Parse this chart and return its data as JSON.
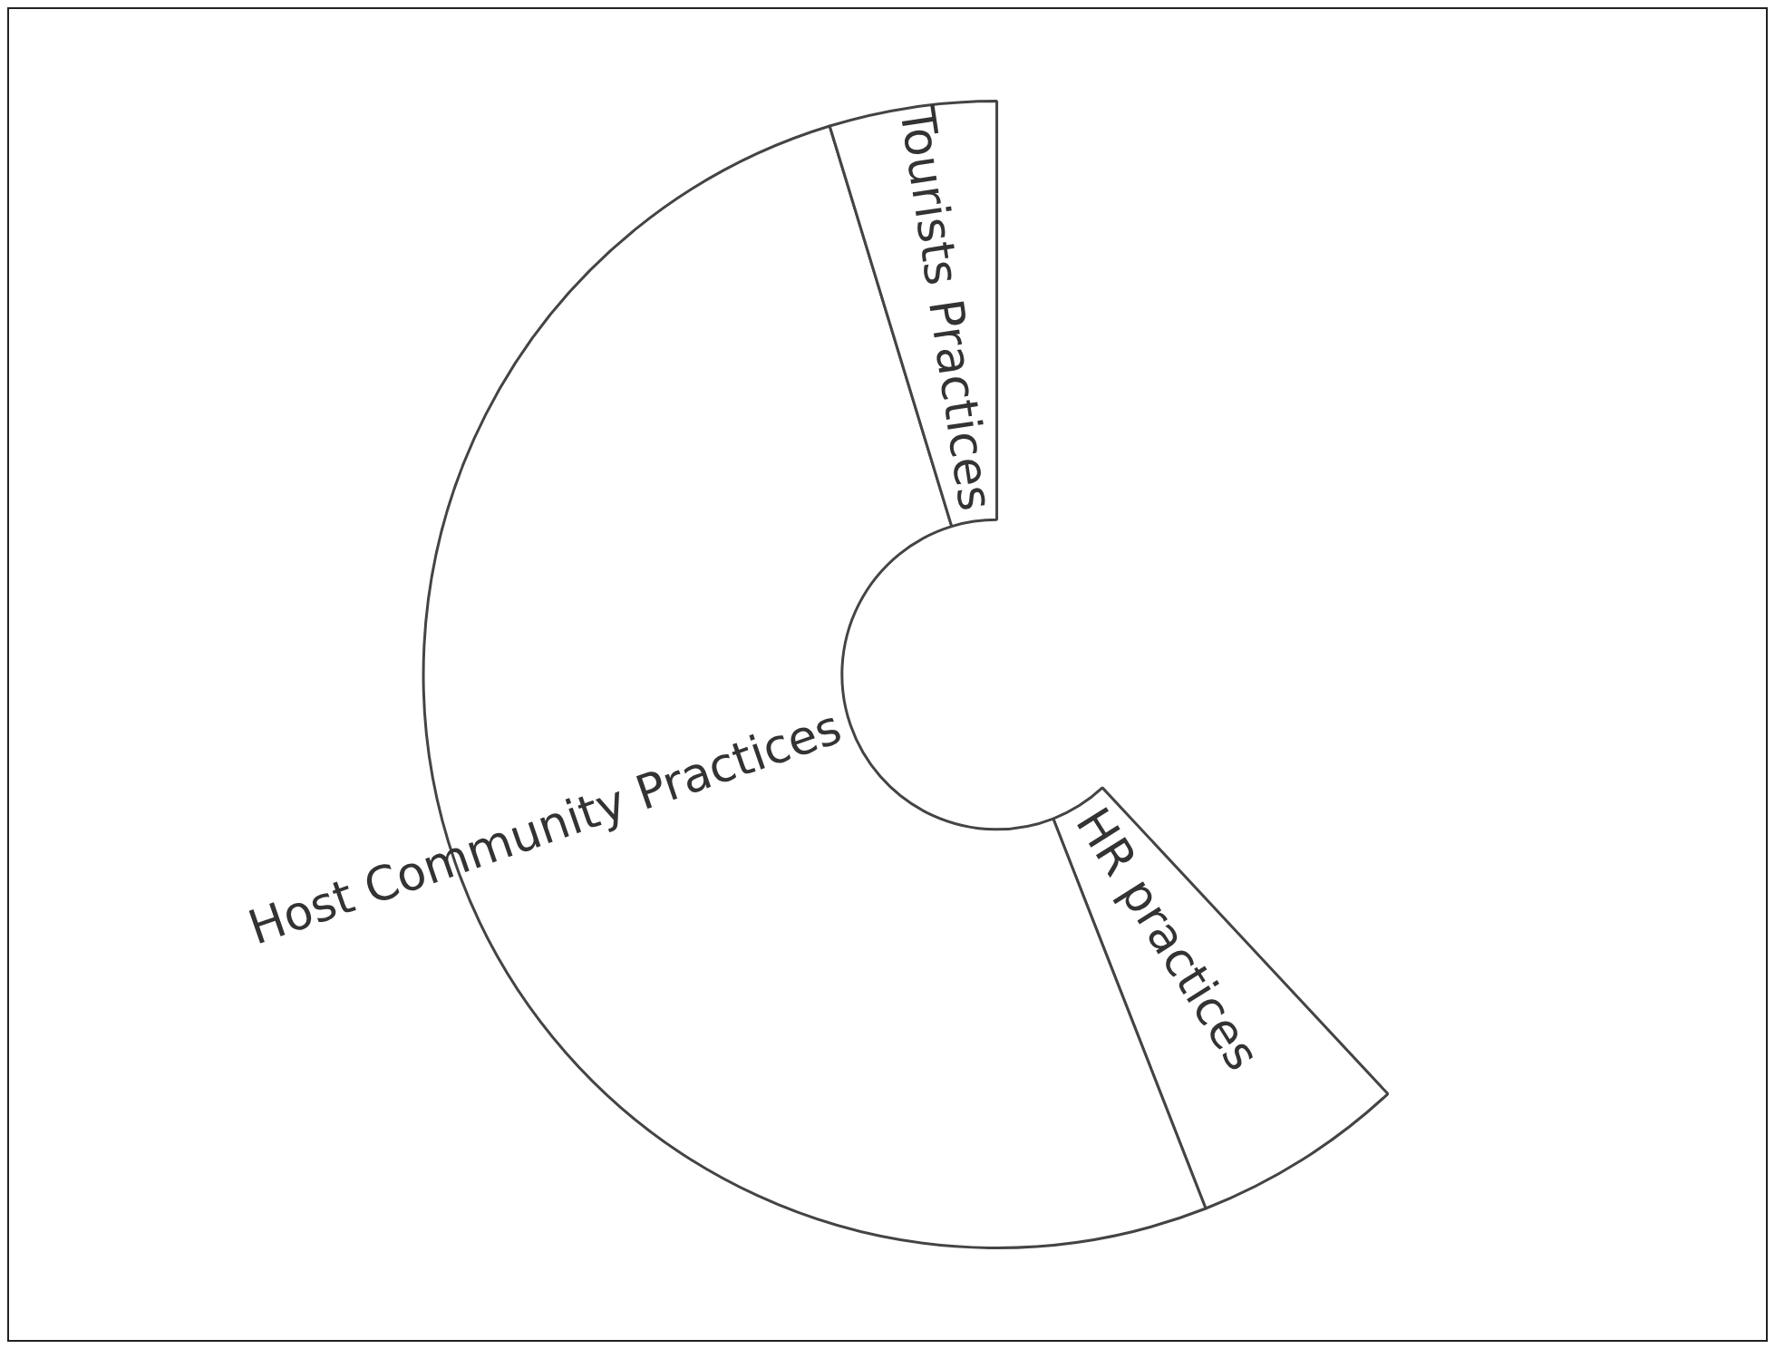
{
  "chart_data": {
    "type": "donut",
    "categories": [
      "HR practices",
      "Host Community Practices",
      "Tourists Practices"
    ],
    "values": [
      9.7,
      82.7,
      7.6
    ],
    "colors": [
      "#ffffff",
      "#ffffff",
      "#ffffff"
    ]
  }
}
